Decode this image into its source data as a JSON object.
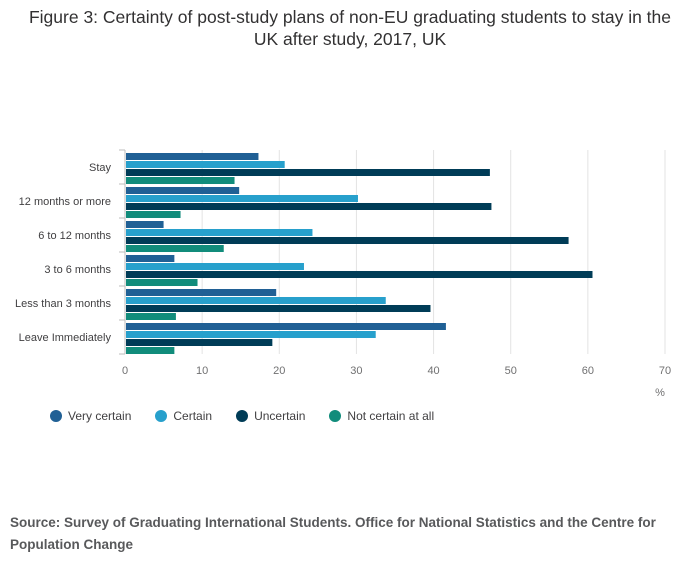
{
  "title": "Figure 3: Certainty of post-study plans of non-EU graduating students to stay in the UK after study, 2017, UK",
  "source": "Source: Survey of Graduating International Students. Office for National Statistics and the Centre for Population Change",
  "chart_data": {
    "type": "bar",
    "orientation": "horizontal",
    "categories": [
      "Stay",
      "12 months or more",
      "6 to 12 months",
      "3 to 6 months",
      "Less than 3 months",
      "Leave Immediately"
    ],
    "series": [
      {
        "name": "Very certain",
        "color": "#206095",
        "values": [
          17.3,
          14.8,
          5.0,
          6.4,
          19.6,
          41.6
        ]
      },
      {
        "name": "Certain",
        "color": "#27a0cc",
        "values": [
          20.7,
          30.2,
          24.3,
          23.2,
          33.8,
          32.5
        ]
      },
      {
        "name": "Uncertain",
        "color": "#003c57",
        "values": [
          47.3,
          47.5,
          57.5,
          60.6,
          39.6,
          19.1
        ]
      },
      {
        "name": "Not certain at all",
        "color": "#118c7b",
        "values": [
          14.2,
          7.2,
          12.8,
          9.4,
          6.6,
          6.4
        ]
      }
    ],
    "x_ticks": [
      0,
      10,
      20,
      30,
      40,
      50,
      60,
      70
    ],
    "xlim": [
      0,
      70
    ],
    "xlabel": "%",
    "grid": true,
    "legend_position": "bottom-left"
  }
}
